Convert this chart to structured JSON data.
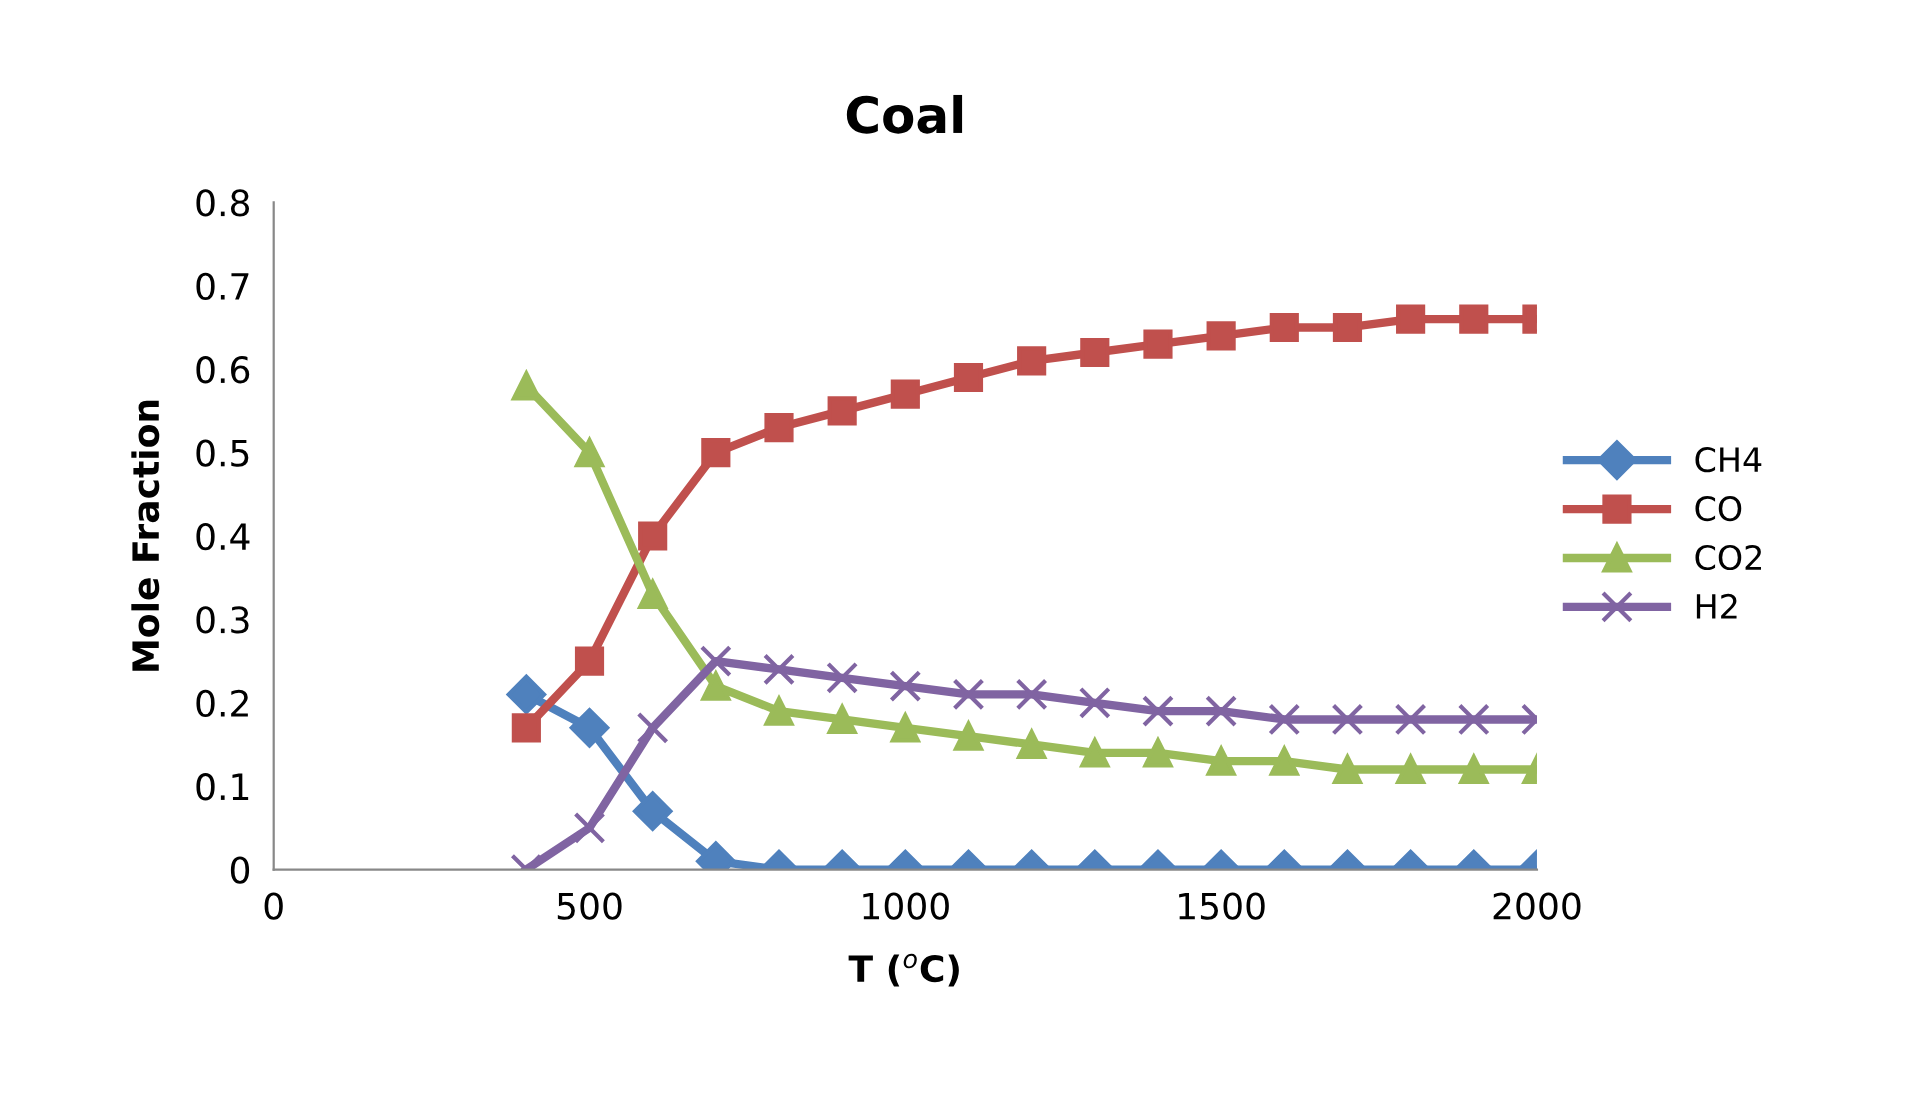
{
  "chart_data": {
    "type": "line",
    "title": "Coal",
    "xlabel": "T ($^{o}$C)",
    "ylabel": "Mole Fraction",
    "x": [
      400,
      500,
      600,
      700,
      800,
      900,
      1000,
      1100,
      1200,
      1300,
      1400,
      1500,
      1600,
      1700,
      1800,
      1900,
      2000
    ],
    "series": [
      {
        "name": "CH4",
        "color": "#4f81bd",
        "marker": "diamond",
        "values": [
          0.21,
          0.17,
          0.07,
          0.01,
          0,
          0,
          0,
          0,
          0,
          0,
          0,
          0,
          0,
          0,
          0,
          0,
          0
        ]
      },
      {
        "name": "CO",
        "color": "#c0504d",
        "marker": "square",
        "values": [
          0.17,
          0.25,
          0.4,
          0.5,
          0.53,
          0.55,
          0.57,
          0.59,
          0.61,
          0.62,
          0.63,
          0.64,
          0.65,
          0.65,
          0.66,
          0.66,
          0.66
        ]
      },
      {
        "name": "CO2",
        "color": "#9bbb59",
        "marker": "triangle",
        "values": [
          0.58,
          0.5,
          0.33,
          0.22,
          0.19,
          0.18,
          0.17,
          0.16,
          0.15,
          0.14,
          0.14,
          0.13,
          0.13,
          0.12,
          0.12,
          0.12,
          0.12
        ]
      },
      {
        "name": "H2",
        "color": "#8064a2",
        "marker": "cross",
        "values": [
          0,
          0.05,
          0.17,
          0.25,
          0.24,
          0.23,
          0.22,
          0.21,
          0.21,
          0.2,
          0.19,
          0.19,
          0.18,
          0.18,
          0.18,
          0.18,
          0.18
        ]
      }
    ],
    "xlim": [
      0,
      2000
    ],
    "xticks": [
      0,
      500,
      1000,
      1500,
      2000
    ],
    "ylim": [
      0,
      0.8
    ],
    "yticks": [
      0,
      0.1,
      0.2,
      0.3,
      0.4,
      0.5,
      0.6,
      0.7,
      0.8
    ],
    "grid": false,
    "legend": "right",
    "line_style": "solid"
  }
}
